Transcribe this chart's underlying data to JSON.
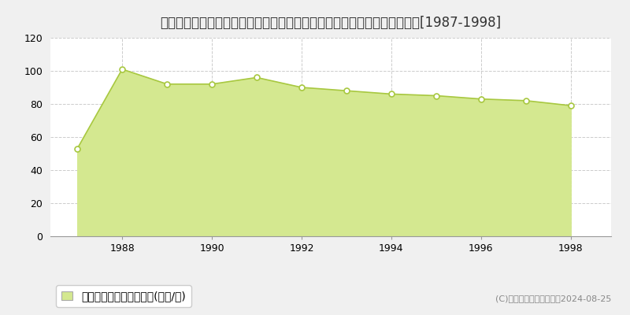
{
  "title": "神奈川県横浜市栄区上郷町字矢沢２２２８番２３　基準地価格　地価推移[1987-1998]",
  "years": [
    1987,
    1988,
    1989,
    1990,
    1991,
    1992,
    1993,
    1994,
    1995,
    1996,
    1997,
    1998
  ],
  "values": [
    53,
    101,
    92,
    92,
    96,
    90,
    88,
    86,
    85,
    83,
    82,
    79
  ],
  "line_color": "#a8c840",
  "fill_color": "#d4e890",
  "marker_color": "#ffffff",
  "marker_edge_color": "#a8c840",
  "background_color": "#f0f0f0",
  "plot_background": "#ffffff",
  "grid_color": "#cccccc",
  "ylim": [
    0,
    120
  ],
  "yticks": [
    0,
    20,
    40,
    60,
    80,
    100,
    120
  ],
  "xtick_years": [
    1988,
    1990,
    1992,
    1994,
    1996,
    1998
  ],
  "legend_label": "基準地価格　平均嵪単価(万円/嵪)",
  "copyright_text": "(C)土地価格ドットコム　2024-08-25",
  "title_fontsize": 12,
  "tick_fontsize": 9,
  "legend_fontsize": 10,
  "copyright_fontsize": 8,
  "xlim_left": 1986.4,
  "xlim_right": 1998.9
}
